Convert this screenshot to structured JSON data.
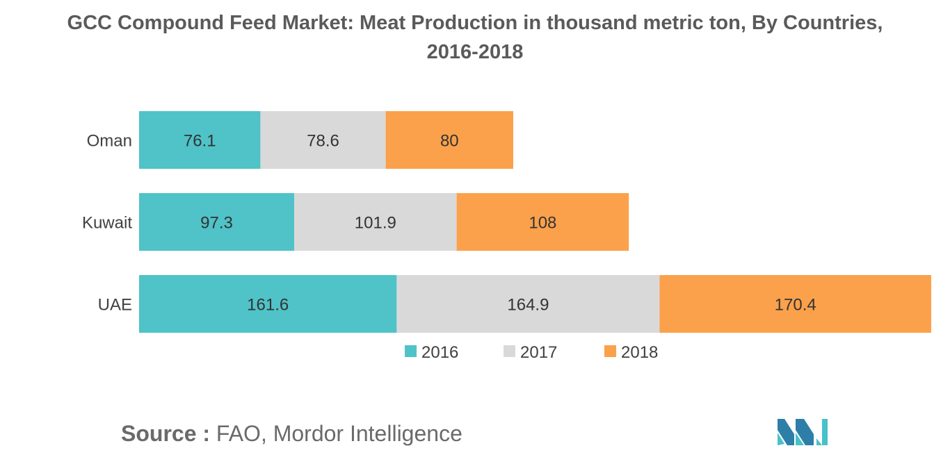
{
  "title_line1": "GCC Compound Feed Market: Meat Production in thousand metric ton, By Countries,",
  "title_line2": "2016-2018",
  "source_label": "Source :",
  "source_text": " FAO, Mordor Intelligence",
  "chart_data": {
    "type": "bar",
    "orientation": "horizontal",
    "stacked": true,
    "title": "GCC Compound Feed Market: Meat Production in thousand metric ton, By Countries, 2016-2018",
    "categories": [
      "Oman",
      "Kuwait",
      "UAE"
    ],
    "series": [
      {
        "name": "2016",
        "color": "#4fc3c8",
        "values": [
          76.1,
          97.3,
          161.6
        ]
      },
      {
        "name": "2017",
        "color": "#d9d9d9",
        "values": [
          78.6,
          101.9,
          164.9
        ]
      },
      {
        "name": "2018",
        "color": "#fba14b",
        "values": [
          80,
          108,
          170.4
        ]
      }
    ],
    "xlim": [
      0,
      496.9
    ],
    "grid": false,
    "legend": "bottom"
  }
}
